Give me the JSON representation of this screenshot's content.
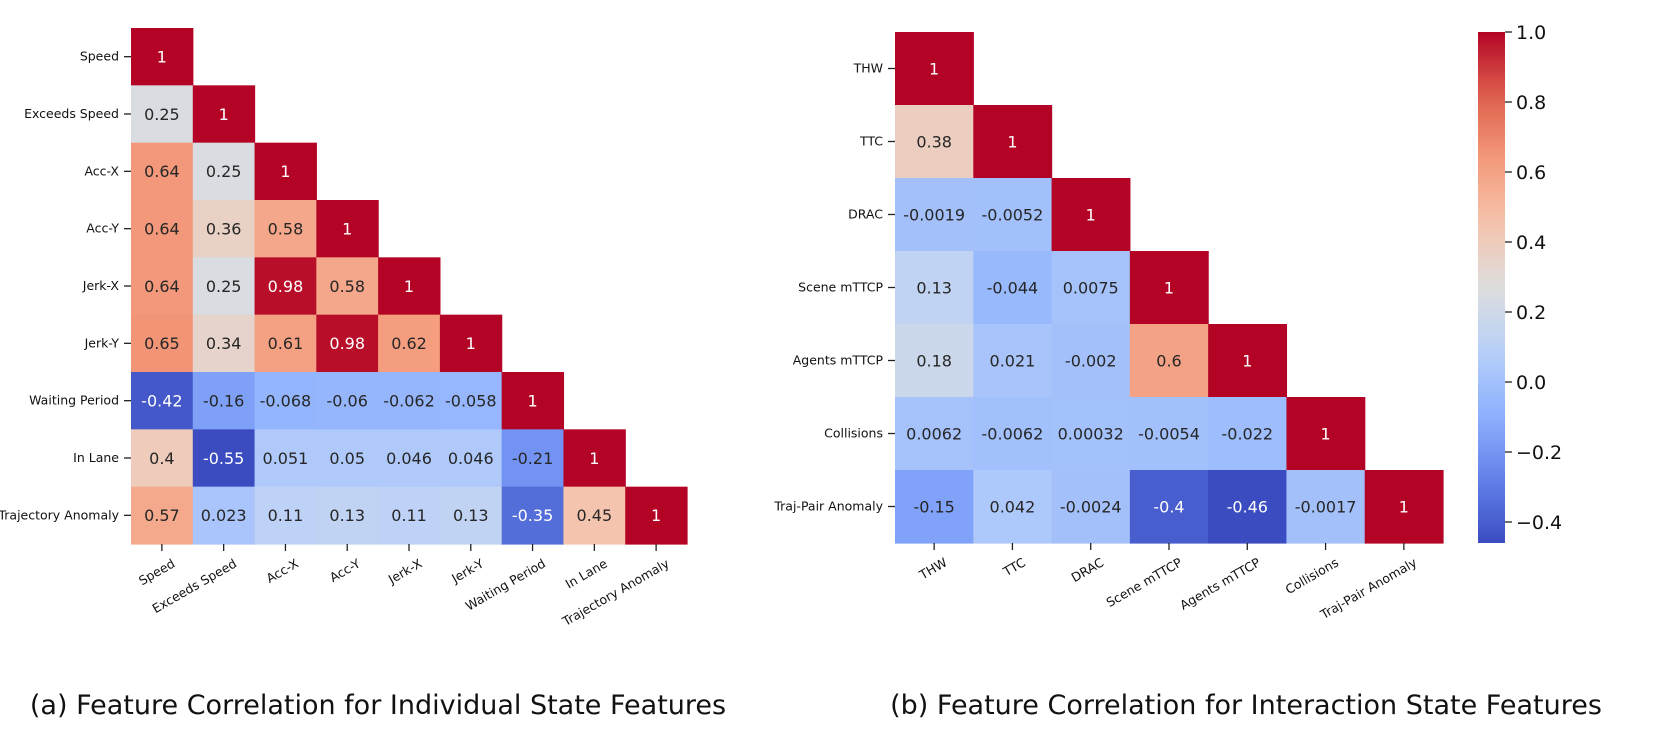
{
  "captions": {
    "a": "(a) Feature Correlation for Individual State Features",
    "b": "(b) Feature Correlation for Interaction State Features"
  },
  "colorbar": {
    "min": -0.46,
    "max": 1.0,
    "ticks": [
      1.0,
      0.8,
      0.6,
      0.4,
      0.2,
      0.0,
      -0.2,
      -0.4
    ],
    "tick_labels": [
      "1.0",
      "0.8",
      "0.6",
      "0.4",
      "0.2",
      "0.0",
      "−0.2",
      "−0.4"
    ],
    "colormap": "coolwarm"
  },
  "chart_data": [
    {
      "type": "heatmap",
      "title": "(a) Feature Correlation for Individual State Features",
      "vmin": -0.46,
      "vmax": 1.0,
      "rows": [
        "Speed",
        "Exceeds Speed",
        "Acc-X",
        "Acc-Y",
        "Jerk-X",
        "Jerk-Y",
        "Waiting Period",
        "In Lane",
        "Trajectory Anomaly"
      ],
      "columns": [
        "Speed",
        "Exceeds Speed",
        "Acc-X",
        "Acc-Y",
        "Jerk-X",
        "Jerk-Y",
        "Waiting Period",
        "In Lane",
        "Trajectory Anomaly"
      ],
      "values": [
        [
          1
        ],
        [
          0.25,
          1
        ],
        [
          0.64,
          0.25,
          1
        ],
        [
          0.64,
          0.36,
          0.58,
          1
        ],
        [
          0.64,
          0.25,
          0.98,
          0.58,
          1
        ],
        [
          0.65,
          0.34,
          0.61,
          0.98,
          0.62,
          1
        ],
        [
          -0.42,
          -0.16,
          -0.068,
          -0.06,
          -0.062,
          -0.058,
          1
        ],
        [
          0.4,
          -0.55,
          0.051,
          0.05,
          0.046,
          0.046,
          -0.21,
          1
        ],
        [
          0.57,
          0.023,
          0.11,
          0.13,
          0.11,
          0.13,
          -0.35,
          0.45,
          1
        ]
      ],
      "labels": [
        [
          "1"
        ],
        [
          "0.25",
          "1"
        ],
        [
          "0.64",
          "0.25",
          "1"
        ],
        [
          "0.64",
          "0.36",
          "0.58",
          "1"
        ],
        [
          "0.64",
          "0.25",
          "0.98",
          "0.58",
          "1"
        ],
        [
          "0.65",
          "0.34",
          "0.61",
          "0.98",
          "0.62",
          "1"
        ],
        [
          "-0.42",
          "-0.16",
          "-0.068",
          "-0.06",
          "-0.062",
          "-0.058",
          "1"
        ],
        [
          "0.4",
          "-0.55",
          "0.051",
          "0.05",
          "0.046",
          "0.046",
          "-0.21",
          "1"
        ],
        [
          "0.57",
          "0.023",
          "0.11",
          "0.13",
          "0.11",
          "0.13",
          "-0.35",
          "0.45",
          "1"
        ]
      ]
    },
    {
      "type": "heatmap",
      "title": "(b) Feature Correlation for Interaction State Features",
      "vmin": -0.46,
      "vmax": 1.0,
      "rows": [
        "THW",
        "TTC",
        "DRAC",
        "Scene mTTCP",
        "Agents mTTCP",
        "Collisions",
        "Traj-Pair Anomaly"
      ],
      "columns": [
        "THW",
        "TTC",
        "DRAC",
        "Scene mTTCP",
        "Agents mTTCP",
        "Collisions",
        "Traj-Pair Anomaly"
      ],
      "values": [
        [
          1
        ],
        [
          0.38,
          1
        ],
        [
          -0.0019,
          -0.0052,
          1
        ],
        [
          0.13,
          -0.044,
          0.0075,
          1
        ],
        [
          0.18,
          0.021,
          -0.002,
          0.6,
          1
        ],
        [
          0.0062,
          -0.0062,
          0.00032,
          -0.0054,
          -0.022,
          1
        ],
        [
          -0.15,
          0.042,
          -0.0024,
          -0.4,
          -0.46,
          -0.0017,
          1
        ]
      ],
      "labels": [
        [
          "1"
        ],
        [
          "0.38",
          "1"
        ],
        [
          "-0.0019",
          "-0.0052",
          "1"
        ],
        [
          "0.13",
          "-0.044",
          "0.0075",
          "1"
        ],
        [
          "0.18",
          "0.021",
          "-0.002",
          "0.6",
          "1"
        ],
        [
          "0.0062",
          "-0.0062",
          "0.00032",
          "-0.0054",
          "-0.022",
          "1"
        ],
        [
          "-0.15",
          "0.042",
          "-0.0024",
          "-0.4",
          "-0.46",
          "-0.0017",
          "1"
        ]
      ]
    }
  ]
}
